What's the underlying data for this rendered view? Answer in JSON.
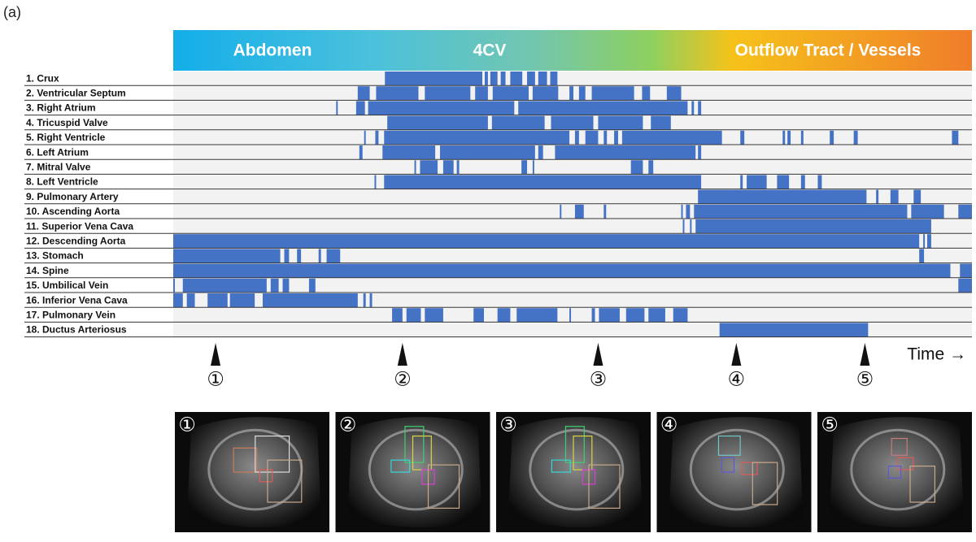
{
  "figure_label": "(a)",
  "phases": [
    "Abdomen",
    "4CV",
    "Outflow Tract / Vessels"
  ],
  "time_label": "Time →",
  "rows": [
    {
      "label": "1. Crux",
      "intervals": [
        [
          0.265,
          0.387
        ],
        [
          0.39,
          0.394
        ],
        [
          0.397,
          0.406
        ],
        [
          0.41,
          0.416
        ],
        [
          0.422,
          0.437
        ],
        [
          0.443,
          0.453
        ],
        [
          0.457,
          0.468
        ],
        [
          0.472,
          0.481
        ]
      ]
    },
    {
      "label": "2. Ventricular Septum",
      "intervals": [
        [
          0.231,
          0.246
        ],
        [
          0.254,
          0.307
        ],
        [
          0.315,
          0.372
        ],
        [
          0.378,
          0.394
        ],
        [
          0.4,
          0.445
        ],
        [
          0.45,
          0.482
        ],
        [
          0.496,
          0.501
        ],
        [
          0.508,
          0.516
        ],
        [
          0.524,
          0.577
        ],
        [
          0.587,
          0.597
        ],
        [
          0.618,
          0.636
        ]
      ]
    },
    {
      "label": "3. Right Atrium",
      "intervals": [
        [
          0.204,
          0.206
        ],
        [
          0.229,
          0.24
        ],
        [
          0.244,
          0.427
        ],
        [
          0.432,
          0.644
        ],
        [
          0.649,
          0.652
        ],
        [
          0.657,
          0.661
        ]
      ]
    },
    {
      "label": "4. Tricuspid Valve",
      "intervals": [
        [
          0.268,
          0.394
        ],
        [
          0.399,
          0.465
        ],
        [
          0.473,
          0.526
        ],
        [
          0.532,
          0.588
        ],
        [
          0.598,
          0.623
        ]
      ]
    },
    {
      "label": "5. Right Ventricle",
      "intervals": [
        [
          0.239,
          0.241
        ],
        [
          0.253,
          0.257
        ],
        [
          0.264,
          0.496
        ],
        [
          0.503,
          0.508
        ],
        [
          0.516,
          0.532
        ],
        [
          0.539,
          0.543
        ],
        [
          0.552,
          0.557
        ],
        [
          0.562,
          0.687
        ],
        [
          0.71,
          0.715
        ],
        [
          0.763,
          0.766
        ],
        [
          0.769,
          0.773
        ],
        [
          0.786,
          0.789
        ],
        [
          0.822,
          0.827
        ],
        [
          0.852,
          0.857
        ],
        [
          0.975,
          0.983
        ]
      ]
    },
    {
      "label": "6. Left Atrium",
      "intervals": [
        [
          0.233,
          0.237
        ],
        [
          0.262,
          0.328
        ],
        [
          0.334,
          0.453
        ],
        [
          0.457,
          0.463
        ],
        [
          0.478,
          0.654
        ],
        [
          0.657,
          0.661
        ]
      ]
    },
    {
      "label": "7. Mitral Valve",
      "intervals": [
        [
          0.302,
          0.304
        ],
        [
          0.309,
          0.331
        ],
        [
          0.338,
          0.351
        ],
        [
          0.355,
          0.358
        ],
        [
          0.436,
          0.443
        ],
        [
          0.45,
          0.452
        ],
        [
          0.573,
          0.588
        ],
        [
          0.595,
          0.601
        ]
      ]
    },
    {
      "label": "8. Left Ventricle",
      "intervals": [
        [
          0.252,
          0.254
        ],
        [
          0.264,
          0.661
        ],
        [
          0.71,
          0.713
        ],
        [
          0.718,
          0.743
        ],
        [
          0.756,
          0.771
        ],
        [
          0.786,
          0.791
        ],
        [
          0.807,
          0.812
        ]
      ]
    },
    {
      "label": "9. Pulmonary Artery",
      "intervals": [
        [
          0.657,
          0.868
        ],
        [
          0.88,
          0.883
        ],
        [
          0.898,
          0.908
        ],
        [
          0.927,
          0.936
        ]
      ]
    },
    {
      "label": "10. Ascending Aorta",
      "intervals": [
        [
          0.484,
          0.486
        ],
        [
          0.503,
          0.514
        ],
        [
          0.539,
          0.542
        ],
        [
          0.636,
          0.638
        ],
        [
          0.642,
          0.647
        ],
        [
          0.652,
          0.919
        ],
        [
          0.924,
          0.965
        ],
        [
          0.983,
          1
        ]
      ]
    },
    {
      "label": "11. Superior Vena Cava",
      "intervals": [
        [
          0.638,
          0.64
        ],
        [
          0.647,
          0.649
        ],
        [
          0.654,
          0.949
        ]
      ]
    },
    {
      "label": "12. Descending Aorta",
      "intervals": [
        [
          0,
          0.934
        ],
        [
          0.939,
          0.941
        ],
        [
          0.944,
          0.949
        ]
      ]
    },
    {
      "label": "13. Stomach",
      "intervals": [
        [
          0,
          0.134
        ],
        [
          0.139,
          0.145
        ],
        [
          0.155,
          0.16
        ],
        [
          0.182,
          0.185
        ],
        [
          0.192,
          0.209
        ],
        [
          0.934,
          0.94
        ]
      ]
    },
    {
      "label": "14. Spine",
      "intervals": [
        [
          0,
          0.973
        ],
        [
          0.985,
          1
        ]
      ]
    },
    {
      "label": "15. Umbilical Vein",
      "intervals": [
        [
          0,
          0.002
        ],
        [
          0.012,
          0.117
        ],
        [
          0.122,
          0.132
        ],
        [
          0.137,
          0.145
        ],
        [
          0.17,
          0.178
        ],
        [
          0.983,
          1
        ]
      ]
    },
    {
      "label": "16. Inferior Vena Cava",
      "intervals": [
        [
          0,
          0.012
        ],
        [
          0.017,
          0.027
        ],
        [
          0.043,
          0.068
        ],
        [
          0.071,
          0.102
        ],
        [
          0.112,
          0.231
        ],
        [
          0.238,
          0.241
        ],
        [
          0.246,
          0.249
        ]
      ]
    },
    {
      "label": "17. Pulmonary Vein",
      "intervals": [
        [
          0.274,
          0.287
        ],
        [
          0.292,
          0.31
        ],
        [
          0.315,
          0.338
        ],
        [
          0.376,
          0.389
        ],
        [
          0.406,
          0.422
        ],
        [
          0.43,
          0.481
        ],
        [
          0.496,
          0.498
        ],
        [
          0.524,
          0.528
        ],
        [
          0.533,
          0.559
        ],
        [
          0.567,
          0.59
        ],
        [
          0.595,
          0.616
        ],
        [
          0.626,
          0.644
        ]
      ]
    },
    {
      "label": "18. Ductus Arteriosus",
      "intervals": [
        [
          0.684,
          0.87
        ]
      ]
    }
  ],
  "markers": [
    {
      "label": "①",
      "time": 0.053
    },
    {
      "label": "②",
      "time": 0.287
    },
    {
      "label": "③",
      "time": 0.532
    },
    {
      "label": "④",
      "time": 0.705
    },
    {
      "label": "⑤",
      "time": 0.866
    }
  ],
  "panels": [
    "①",
    "②",
    "③",
    "④",
    "⑤"
  ]
}
